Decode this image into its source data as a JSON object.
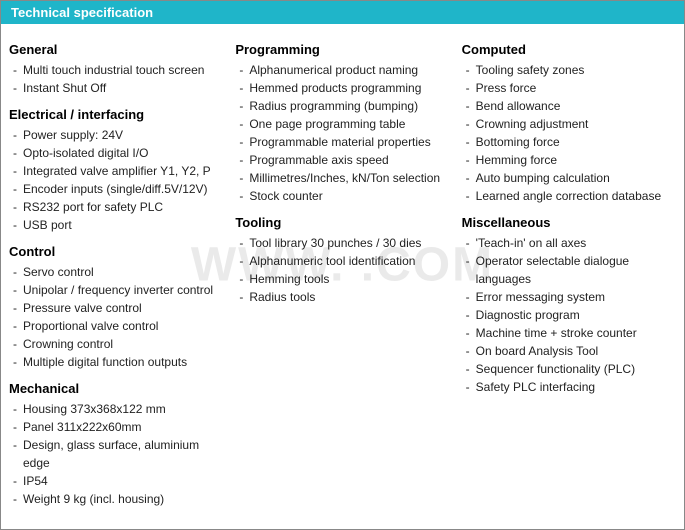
{
  "header": {
    "title": "Technical specification"
  },
  "watermark": "WWW.           .COM",
  "columns": [
    {
      "sections": [
        {
          "title": "General",
          "items": [
            "Multi touch industrial touch screen",
            "Instant Shut Off"
          ]
        },
        {
          "title": "Electrical / interfacing",
          "items": [
            "Power supply: 24V",
            "Opto-isolated digital I/O",
            "Integrated valve amplifier Y1, Y2, P",
            "Encoder inputs  (single/diff.5V/12V)",
            "RS232 port for safety PLC",
            "USB port"
          ]
        },
        {
          "title": "Control",
          "items": [
            "Servo control",
            "Unipolar / frequency inverter control",
            "Pressure valve control",
            "Proportional valve control",
            "Crowning control",
            "Multiple digital function outputs"
          ]
        },
        {
          "title": "Mechanical",
          "items": [
            "Housing 373x368x122 mm",
            "Panel 311x222x60mm",
            "Design, glass surface, aluminium edge",
            "IP54",
            "Weight 9 kg (incl. housing)"
          ]
        }
      ]
    },
    {
      "sections": [
        {
          "title": "Programming",
          "items": [
            "Alphanumerical product naming",
            "Hemmed products programming",
            "Radius programming (bumping)",
            "One page programming table",
            "Programmable material properties",
            "Programmable axis speed",
            "Millimetres/Inches, kN/Ton selection",
            "Stock counter"
          ]
        },
        {
          "title": "Tooling",
          "items": [
            "Tool library 30 punches / 30 dies",
            "Alphanumeric tool identification",
            "Hemming tools",
            "Radius tools"
          ]
        }
      ]
    },
    {
      "sections": [
        {
          "title": "Computed",
          "items": [
            "Tooling safety zones",
            "Press force",
            "Bend allowance",
            "Crowning adjustment",
            "Bottoming force",
            "Hemming force",
            "Auto bumping calculation",
            "Learned angle correction database"
          ]
        },
        {
          "title": "Miscellaneous",
          "items": [
            "'Teach-in' on all axes",
            "Operator selectable dialogue languages",
            "Error messaging system",
            "Diagnostic program",
            "Machine time + stroke counter",
            "On board Analysis Tool",
            "Sequencer functionality (PLC)",
            "Safety PLC interfacing"
          ]
        }
      ]
    }
  ],
  "styles": {
    "header_bg": "#1fb5c9",
    "header_text_color": "#ffffff",
    "body_bg": "#ffffff",
    "title_color": "#000000",
    "item_color": "#222222",
    "watermark_color": "rgba(180,180,180,0.28)",
    "header_fontsize": 13,
    "title_fontsize": 13,
    "item_fontsize": 12
  }
}
